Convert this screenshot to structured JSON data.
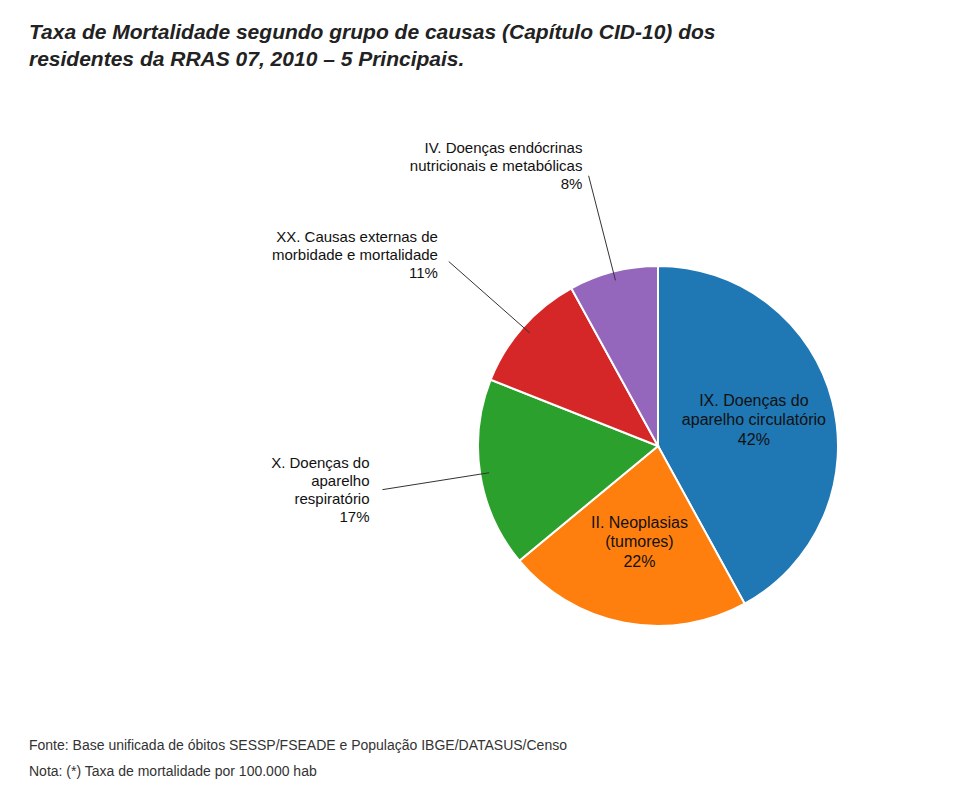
{
  "chart_data": {
    "type": "pie",
    "title": "Taxa de Mortalidade segundo grupo de causas (Capítulo CID-10) dos\nresidentes da RRAS 07, 2010 – 5 Principais.",
    "categories": [
      "IX.  Doenças do\naparelho circulatório",
      "II.  Neoplasias\n(tumores)",
      "X.  Doenças do\naparelho\nrespiratório",
      "XX.  Causas externas de\nmorbidade e mortalidade",
      "IV.  Doenças endócrinas\nnutricionais e metabólicas"
    ],
    "values": [
      42,
      22,
      17,
      11,
      8
    ],
    "value_labels": [
      "42%",
      "22%",
      "17%",
      "11%",
      "8%"
    ],
    "footnotes": [
      "Fonte: Base unificada de óbitos SESSP/FSEADE e População IBGE/DATASUS/Censo",
      "Nota: (*) Taxa de mortalidade por 100.000 hab"
    ]
  }
}
